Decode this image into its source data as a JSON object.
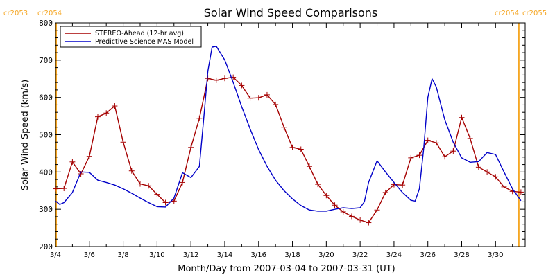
{
  "chart_data": {
    "type": "line",
    "title": "Solar Wind Speed Comparisons",
    "xlabel": "Month/Day from 2007-03-04 to 2007-03-31 (UT)",
    "ylabel": "Solar Wind Speed (km/s)",
    "xlim": [
      "2007-03-04",
      "2007-03-31T18:00"
    ],
    "ylim": [
      200,
      800
    ],
    "x_tick_labels": [
      "3/4",
      "3/6",
      "3/8",
      "3/10",
      "3/12",
      "3/14",
      "3/16",
      "3/18",
      "3/20",
      "3/22",
      "3/24",
      "3/26",
      "3/28",
      "3/30"
    ],
    "y_tick_labels": [
      "200",
      "300",
      "400",
      "500",
      "600",
      "700",
      "800"
    ],
    "grid": false,
    "legend": {
      "placement": "top-left",
      "boxed": true
    },
    "carrington_labels": {
      "left": [
        "cr2053",
        "cr2054"
      ],
      "right": [
        "cr2054",
        "cr2055"
      ],
      "color": "#f5a623"
    },
    "boundary_markers": {
      "color": "#f5a623",
      "x": [
        "2007-03-04T01:00",
        "2007-03-31T09:00"
      ]
    },
    "series": [
      {
        "name": "STEREO-Ahead (12-hr avg)",
        "color": "#a50000",
        "marker": "plus",
        "x": [
          "2007-03-04T00:00",
          "2007-03-04T12:00",
          "2007-03-05T00:00",
          "2007-03-05T12:00",
          "2007-03-06T00:00",
          "2007-03-06T12:00",
          "2007-03-07T00:00",
          "2007-03-07T12:00",
          "2007-03-08T00:00",
          "2007-03-08T12:00",
          "2007-03-09T00:00",
          "2007-03-09T12:00",
          "2007-03-10T00:00",
          "2007-03-10T12:00",
          "2007-03-11T00:00",
          "2007-03-11T12:00",
          "2007-03-12T00:00",
          "2007-03-12T12:00",
          "2007-03-13T00:00",
          "2007-03-13T12:00",
          "2007-03-14T00:00",
          "2007-03-14T12:00",
          "2007-03-15T00:00",
          "2007-03-15T12:00",
          "2007-03-16T00:00",
          "2007-03-16T12:00",
          "2007-03-17T00:00",
          "2007-03-17T12:00",
          "2007-03-18T00:00",
          "2007-03-18T12:00",
          "2007-03-19T00:00",
          "2007-03-19T12:00",
          "2007-03-20T00:00",
          "2007-03-20T12:00",
          "2007-03-21T00:00",
          "2007-03-21T12:00",
          "2007-03-22T00:00",
          "2007-03-22T12:00",
          "2007-03-23T00:00",
          "2007-03-23T12:00",
          "2007-03-24T00:00",
          "2007-03-24T12:00",
          "2007-03-25T00:00",
          "2007-03-25T12:00",
          "2007-03-26T00:00",
          "2007-03-26T12:00",
          "2007-03-27T00:00",
          "2007-03-27T12:00",
          "2007-03-28T00:00",
          "2007-03-28T12:00",
          "2007-03-29T00:00",
          "2007-03-29T12:00",
          "2007-03-30T00:00",
          "2007-03-30T12:00",
          "2007-03-31T00:00",
          "2007-03-31T12:00"
        ],
        "y": [
          355,
          356,
          427,
          395,
          442,
          548,
          558,
          577,
          480,
          403,
          368,
          363,
          340,
          318,
          322,
          372,
          466,
          544,
          651,
          646,
          651,
          654,
          632,
          598,
          599,
          607,
          581,
          520,
          466,
          461,
          415,
          367,
          337,
          311,
          293,
          281,
          271,
          264,
          298,
          345,
          366,
          365,
          438,
          445,
          485,
          478,
          441,
          456,
          546,
          490,
          413,
          400,
          387,
          360,
          348,
          346
        ]
      },
      {
        "name": "Predictive Science MAS Model",
        "color": "#0000c8",
        "marker": "none",
        "x": [
          "2007-03-04T00:00",
          "2007-03-04T06:00",
          "2007-03-04T12:00",
          "2007-03-05T00:00",
          "2007-03-05T12:00",
          "2007-03-06T00:00",
          "2007-03-06T12:00",
          "2007-03-07T00:00",
          "2007-03-07T12:00",
          "2007-03-08T00:00",
          "2007-03-08T12:00",
          "2007-03-09T00:00",
          "2007-03-09T12:00",
          "2007-03-10T00:00",
          "2007-03-10T12:00",
          "2007-03-11T00:00",
          "2007-03-11T12:00",
          "2007-03-12T00:00",
          "2007-03-12T12:00",
          "2007-03-12T18:00",
          "2007-03-13T00:00",
          "2007-03-13T06:00",
          "2007-03-13T12:00",
          "2007-03-14T00:00",
          "2007-03-14T12:00",
          "2007-03-15T00:00",
          "2007-03-15T12:00",
          "2007-03-16T00:00",
          "2007-03-16T12:00",
          "2007-03-17T00:00",
          "2007-03-17T12:00",
          "2007-03-18T00:00",
          "2007-03-18T12:00",
          "2007-03-19T00:00",
          "2007-03-19T12:00",
          "2007-03-20T00:00",
          "2007-03-20T12:00",
          "2007-03-21T00:00",
          "2007-03-21T12:00",
          "2007-03-22T00:00",
          "2007-03-22T06:00",
          "2007-03-22T12:00",
          "2007-03-23T00:00",
          "2007-03-23T12:00",
          "2007-03-24T00:00",
          "2007-03-24T12:00",
          "2007-03-25T00:00",
          "2007-03-25T06:00",
          "2007-03-25T12:00",
          "2007-03-25T18:00",
          "2007-03-26T00:00",
          "2007-03-26T06:00",
          "2007-03-26T12:00",
          "2007-03-27T00:00",
          "2007-03-27T12:00",
          "2007-03-28T00:00",
          "2007-03-28T12:00",
          "2007-03-29T00:00",
          "2007-03-29T12:00",
          "2007-03-30T00:00",
          "2007-03-30T12:00",
          "2007-03-31T00:00",
          "2007-03-31T12:00"
        ],
        "y": [
          322,
          313,
          318,
          345,
          400,
          399,
          378,
          372,
          365,
          355,
          343,
          330,
          318,
          307,
          306,
          330,
          398,
          385,
          415,
          540,
          670,
          735,
          737,
          700,
          640,
          575,
          515,
          460,
          415,
          378,
          350,
          328,
          310,
          298,
          295,
          295,
          300,
          304,
          302,
          304,
          320,
          372,
          430,
          400,
          372,
          345,
          324,
          322,
          355,
          460,
          600,
          650,
          628,
          540,
          480,
          438,
          426,
          428,
          452,
          447,
          400,
          355,
          323
        ]
      }
    ]
  }
}
